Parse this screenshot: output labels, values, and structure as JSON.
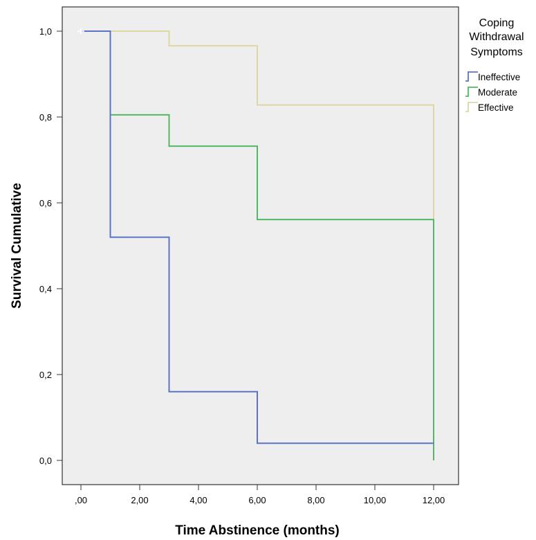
{
  "chart_data": {
    "type": "line",
    "step": true,
    "xlabel": "Time Abstinence (months)",
    "ylabel": "Survival Cumulative",
    "xlim": [
      0,
      12
    ],
    "ylim": [
      0,
      1
    ],
    "x_ticks": [
      0,
      2,
      4,
      6,
      8,
      10,
      12
    ],
    "x_tick_labels": [
      ",00",
      "2,00",
      "4,00",
      "6,00",
      "8,00",
      "10,00",
      "12,00"
    ],
    "y_ticks": [
      0,
      0.2,
      0.4,
      0.6,
      0.8,
      1.0
    ],
    "y_tick_labels": [
      "0,0",
      "0,2",
      "0,4",
      "0,6",
      "0,8",
      "1,0"
    ],
    "grid": false,
    "legend_title": [
      "Coping",
      "Withdrawal",
      "Symptoms"
    ],
    "legend_position": "right",
    "series": [
      {
        "name": "Ineffective",
        "color": "#5b73c4",
        "x": [
          0,
          1,
          3,
          6,
          12
        ],
        "y": [
          1.0,
          0.52,
          0.16,
          0.04,
          0.04
        ]
      },
      {
        "name": "Moderate",
        "color": "#52b861",
        "x": [
          0,
          1,
          3,
          6,
          12
        ],
        "y": [
          1.0,
          0.805,
          0.732,
          0.561,
          0.0
        ]
      },
      {
        "name": "Effective",
        "color": "#ded7a3",
        "x": [
          0,
          3,
          6,
          12
        ],
        "y": [
          1.0,
          0.966,
          0.828,
          0.561
        ]
      }
    ]
  }
}
